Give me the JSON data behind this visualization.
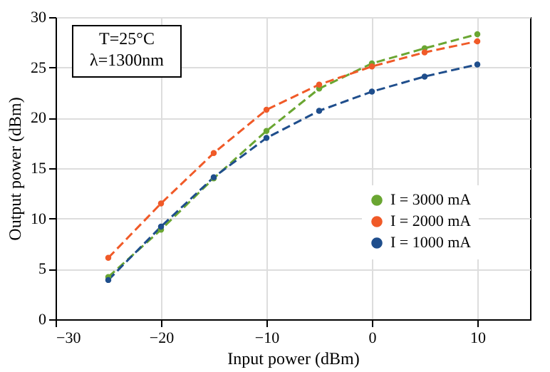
{
  "chart_data": {
    "type": "line",
    "xlabel": "Input power (dBm)",
    "ylabel": "Output power (dBm)",
    "x": [
      -25,
      -20,
      -15,
      -10,
      -5,
      0,
      5,
      10
    ],
    "series": [
      {
        "name": "I = 3000 mA",
        "color": "#6aa632",
        "values": [
          4.2,
          8.9,
          14.0,
          18.7,
          22.9,
          25.4,
          26.9,
          28.3
        ]
      },
      {
        "name": "I = 2000 mA",
        "color": "#f05a28",
        "values": [
          6.1,
          11.5,
          16.5,
          20.8,
          23.3,
          25.1,
          26.5,
          27.6
        ]
      },
      {
        "name": "I = 1000 mA",
        "color": "#1f4e8c",
        "values": [
          3.9,
          9.2,
          14.1,
          18.0,
          20.7,
          22.6,
          24.1,
          25.3
        ]
      }
    ],
    "xlim": [
      -30,
      15
    ],
    "xticks": [
      -30,
      -20,
      -10,
      0,
      10
    ],
    "ylim": [
      0,
      30
    ],
    "yticks": [
      0,
      5,
      10,
      15,
      20,
      25,
      30
    ],
    "annotations": [
      "T=25°C",
      "λ=1300nm"
    ],
    "grid": true,
    "legend": "right",
    "marker": "circle",
    "line_style": "dashed"
  }
}
